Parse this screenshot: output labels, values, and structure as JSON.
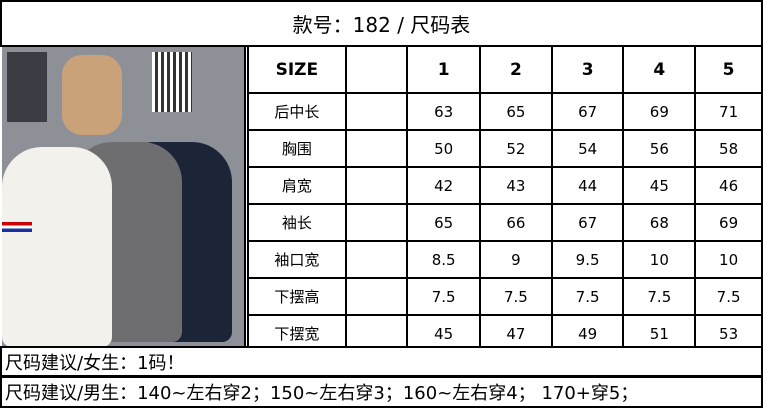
{
  "title": "款号：182 / 尺码表",
  "table": {
    "header": [
      "SIZE",
      "",
      "1",
      "2",
      "3",
      "4",
      "5"
    ],
    "rows": [
      {
        "label": "后中长",
        "values": [
          "63",
          "65",
          "67",
          "69",
          "71"
        ]
      },
      {
        "label": "胸围",
        "values": [
          "50",
          "52",
          "54",
          "56",
          "58"
        ]
      },
      {
        "label": "肩宽",
        "values": [
          "42",
          "43",
          "44",
          "45",
          "46"
        ]
      },
      {
        "label": "袖长",
        "values": [
          "65",
          "66",
          "67",
          "68",
          "69"
        ]
      },
      {
        "label": "袖口宽",
        "values": [
          "8.5",
          "9",
          "9.5",
          "10",
          "10"
        ]
      },
      {
        "label": "下摆高",
        "values": [
          "7.5",
          "7.5",
          "7.5",
          "7.5",
          "7.5"
        ]
      },
      {
        "label": "下摆宽",
        "values": [
          "45",
          "47",
          "49",
          "51",
          "53"
        ]
      }
    ]
  },
  "notes": [
    "尺码建议/女生：1码！",
    "尺码建议/男生：140~左右穿2；150~左右穿3；160~左右穿4；   170+穿5；"
  ],
  "photo": {
    "colors": [
      "#f3f1ec",
      "#6e6e70",
      "#1c2438"
    ]
  }
}
